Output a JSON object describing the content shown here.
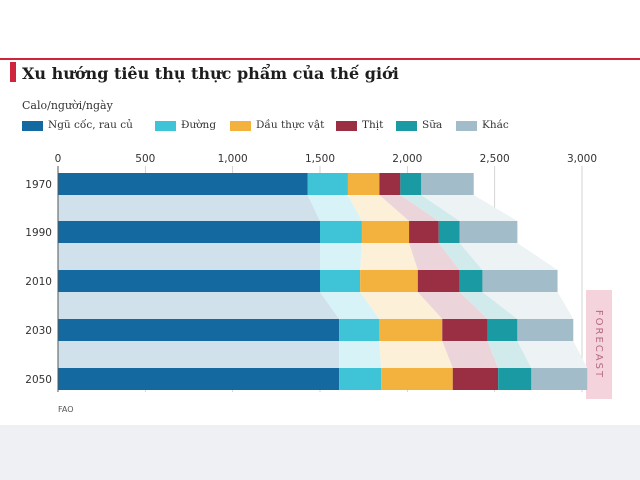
{
  "title": "Xu hướng tiêu thụ thực phẩm của thế giới",
  "subtitle": "Calo/người/ngày",
  "forecast_label": "FORECAST",
  "source": "FAO",
  "legend": [
    {
      "label": "Ngũ cốc, rau củ",
      "color": "#1369a0"
    },
    {
      "label": "Đường",
      "color": "#3ec4d6"
    },
    {
      "label": "Dầu thực vật",
      "color": "#f2b23d"
    },
    {
      "label": "Thịt",
      "color": "#9a2f44"
    },
    {
      "label": "Sữa",
      "color": "#1a9aa2"
    },
    {
      "label": "Khác",
      "color": "#a3bcc9"
    }
  ],
  "chart_data": {
    "type": "bar",
    "orientation": "horizontal",
    "stacked": true,
    "categories": [
      "1970",
      "1990",
      "2010",
      "2030",
      "2050"
    ],
    "xlim": [
      0,
      3000
    ],
    "xticks": [
      "0",
      "500",
      "1,000",
      "1,500",
      "2,000",
      "2,500",
      "3,000"
    ],
    "forecast_categories": [
      "2030",
      "2050"
    ],
    "series": [
      {
        "name": "Ngũ cốc, rau củ",
        "color": "#1369a0",
        "values": [
          1430,
          1500,
          1500,
          1610,
          1610
        ]
      },
      {
        "name": "Đường",
        "color": "#3ec4d6",
        "values": [
          230,
          240,
          230,
          230,
          240
        ]
      },
      {
        "name": "Dầu thực vật",
        "color": "#f2b23d",
        "values": [
          180,
          270,
          330,
          360,
          410
        ]
      },
      {
        "name": "Thịt",
        "color": "#9a2f44",
        "values": [
          120,
          170,
          240,
          260,
          260
        ]
      },
      {
        "name": "Sữa",
        "color": "#1a9aa2",
        "values": [
          120,
          120,
          130,
          170,
          190
        ]
      },
      {
        "name": "Khác",
        "color": "#a3bcc9",
        "values": [
          300,
          330,
          430,
          320,
          320
        ]
      }
    ]
  }
}
